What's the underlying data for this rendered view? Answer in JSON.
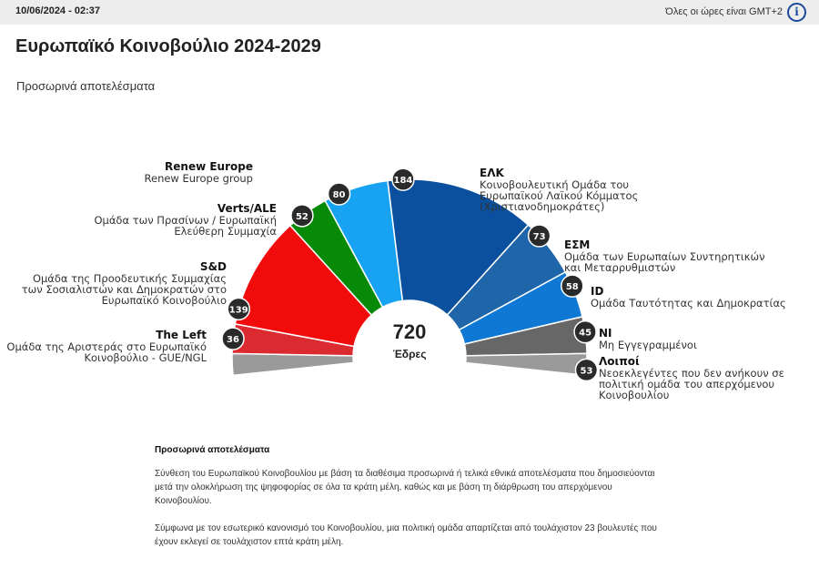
{
  "header": {
    "date": "10/06/2024 - 02:37",
    "timezone": "Όλες οι ώρες είναι GMT+2",
    "info_icon": "info-icon"
  },
  "title": "Ευρωπαϊκό Κοινοβούλιο 2024-2029",
  "subtitle": "Προσωρινά αποτελέσματα",
  "chart_data": {
    "type": "hemicycle",
    "total": "720",
    "total_label": "Έδρες",
    "parties": [
      {
        "short": "The Left",
        "name": "Ομάδα της Αριστεράς στο Ευρωπαϊκό Κοινοβούλιο - GUE/NGL",
        "seats": 36,
        "color": "#dc2b30"
      },
      {
        "short": "S&D",
        "name": "Ομάδα της Προοδευτικής Συμμαχίας των Σοσιαλιστών και Δημοκρατών στο Ευρωπαϊκό Κοινοβούλιο",
        "seats": 139,
        "color": "#f20b0b"
      },
      {
        "short": "Verts/ALE",
        "name": "Ομάδα των Πρασίνων / Ευρωπαϊκή Ελεύθερη Συμμαχία",
        "seats": 52,
        "color": "#078a07"
      },
      {
        "short": "Renew Europe",
        "name": "Renew Europe group",
        "seats": 80,
        "color": "#18a2f2"
      },
      {
        "short": "ΕΛΚ",
        "name": "Κοινοβουλευτική Ομάδα του Ευρωπαϊκού Λαϊκού Κόμματος (Χριστιανοδημοκράτες)",
        "seats": 184,
        "color": "#0a509e"
      },
      {
        "short": "ΕΣΜ",
        "name": "Ομάδα των Ευρωπαίων Συντηρητικών και Μεταρρυθμιστών",
        "seats": 73,
        "color": "#1f65a9"
      },
      {
        "short": "ID",
        "name": "Ομάδα Ταυτότητας και Δημοκρατίας",
        "seats": 58,
        "color": "#0f78d4"
      },
      {
        "short": "NI",
        "name": "Μη Εγγεγραμμένοι",
        "seats": 45,
        "color": "#676767"
      },
      {
        "short": "Λοιποί",
        "name": "Νεοεκλεγέντες που δεν ανήκουν σε πολιτική ομάδα του απερχόμενου Κοινοβουλίου",
        "seats": 53,
        "color": "#9a9a9a"
      }
    ]
  },
  "footer": {
    "heading": "Προσωρινά αποτελέσματα",
    "p1": "Σύνθεση του Ευρωπαϊκού Κοινοβουλίου με βάση τα διαθέσιμα προσωρινά ή τελικά εθνικά αποτελέσματα που δημοσιεύονται μετά την ολοκλήρωση της ψηφοφορίας σε όλα τα κράτη μέλη, καθώς και με βάση τη διάρθρωση του απερχόμενου Κοινοβουλίου.",
    "p2": "Σύμφωνα με τον εσωτερικό κανονισμό του Κοινοβουλίου, μια πολιτική ομάδα απαρτίζεται από τουλάχιστον 23 βουλευτές που έχουν εκλεγεί σε τουλάχιστον επτά κράτη μέλη."
  }
}
